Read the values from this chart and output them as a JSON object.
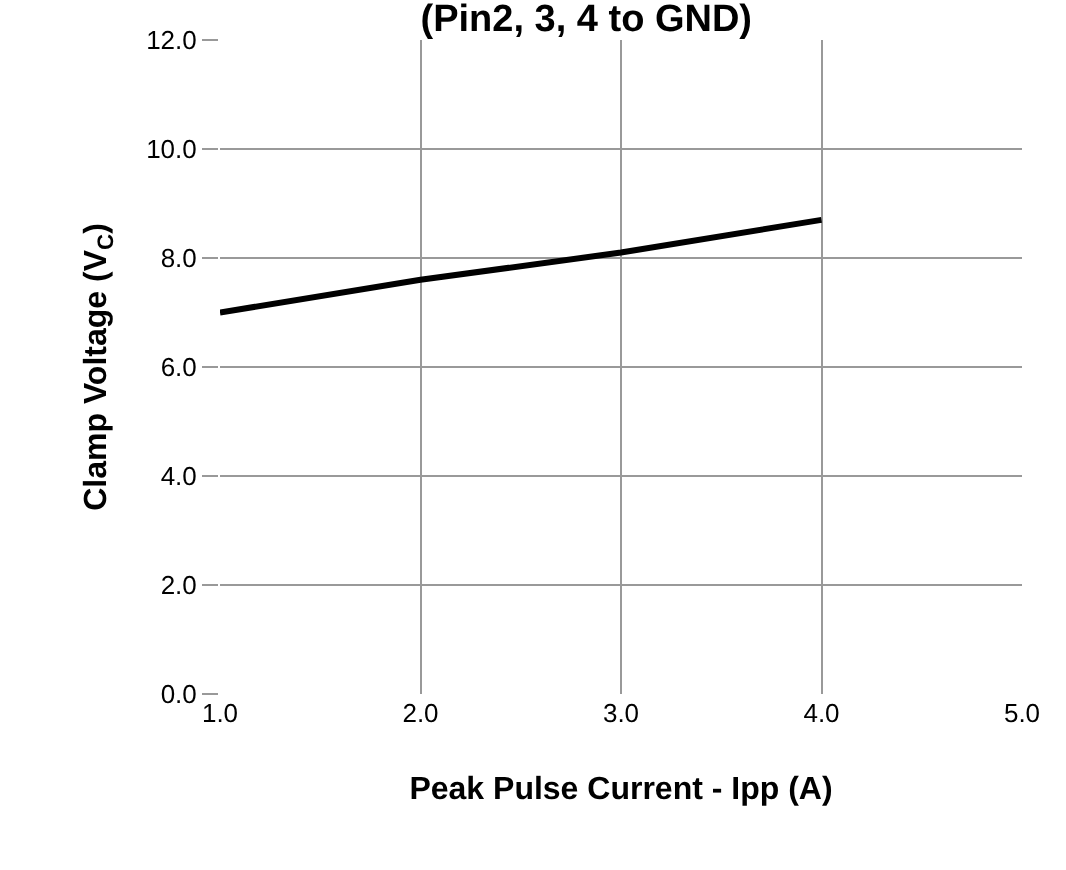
{
  "chart_data": {
    "type": "line",
    "title": "(Pin2, 3, 4 to GND)",
    "xlabel": "Peak Pulse Current - Ipp (A)",
    "ylabel": "Clamp Voltage (V$_{C}$)",
    "x": [
      1,
      2,
      3,
      4
    ],
    "series": [
      {
        "color": "#000000",
        "values": [
          7.0,
          7.6,
          8.1,
          8.7
        ]
      }
    ],
    "xlim": [
      1,
      5
    ],
    "xticks": [
      {
        "value": 1,
        "label": "1.0"
      },
      {
        "value": 2,
        "label": "2.0"
      },
      {
        "value": 3,
        "label": "3.0"
      },
      {
        "value": 4,
        "label": "4.0"
      },
      {
        "value": 5,
        "label": "5.0"
      }
    ],
    "ylim": [
      0,
      12
    ],
    "yticks": [
      {
        "value": 0,
        "label": "0.0"
      },
      {
        "value": 2,
        "label": "2.0"
      },
      {
        "value": 4,
        "label": "4.0"
      },
      {
        "value": 6,
        "label": "6.0"
      },
      {
        "value": 8,
        "label": "8.0"
      },
      {
        "value": 10,
        "label": "10.0"
      },
      {
        "value": 12,
        "label": "12.0"
      }
    ],
    "grid": true,
    "legend": false,
    "marker": "none",
    "line_style": "solid"
  }
}
